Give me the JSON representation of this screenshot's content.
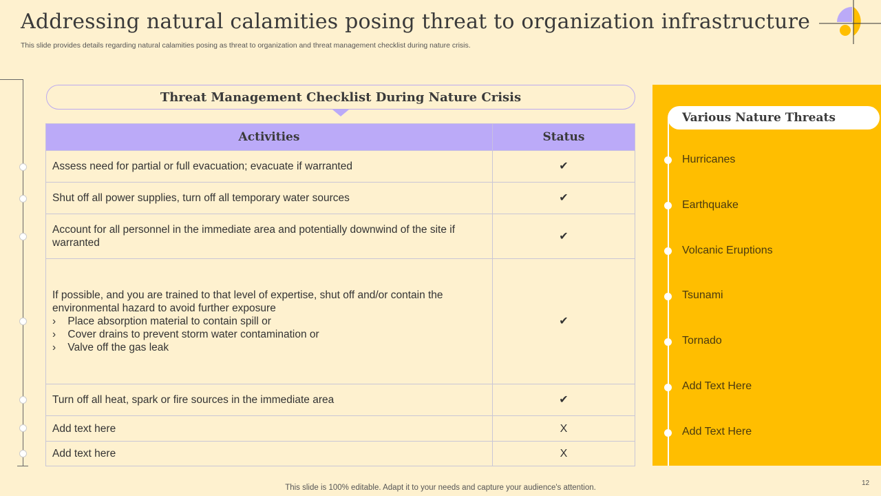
{
  "title": "Addressing natural calamities posing threat to organization infrastructure",
  "subtitle": "This slide provides details regarding natural calamities posing as threat to organization and threat management checklist during nature crisis.",
  "checklist": {
    "heading": "Threat Management Checklist During Nature Crisis",
    "columns": [
      "Activities",
      "Status"
    ],
    "rows": [
      {
        "activity": "Assess need for partial or full evacuation; evacuate if warranted",
        "status": "✔"
      },
      {
        "activity": "Shut off all power supplies, turn off all temporary water sources",
        "status": "✔"
      },
      {
        "activity": "Account for all personnel in the immediate area and potentially downwind of the site if warranted",
        "status": "✔"
      },
      {
        "activity": "If possible, and you are trained to that level of expertise, shut off and/or contain the environmental hazard to avoid further exposure",
        "bullets": [
          "Place absorption material to contain spill or",
          "Cover drains to prevent storm water contamination or",
          "Valve off the gas leak"
        ],
        "status": "✔"
      },
      {
        "activity": "Turn off all heat, spark or fire sources in the immediate area",
        "status": "✔"
      },
      {
        "activity": "Add text here",
        "status": "X"
      },
      {
        "activity": "Add text here",
        "status": "X"
      }
    ]
  },
  "threats": {
    "heading": "Various Nature Threats",
    "items": [
      "Hurricanes",
      "Earthquake",
      "Volcanic Eruptions",
      "Tsunami",
      "Tornado",
      "Add Text Here",
      "Add Text Here"
    ]
  },
  "footer": "This slide is 100% editable. Adapt it to your needs and capture your audience's attention.",
  "page_number": "12",
  "colors": {
    "background": "#FEF1CF",
    "lavender": "#BBAAF8",
    "yellow": "#FFBE00"
  }
}
